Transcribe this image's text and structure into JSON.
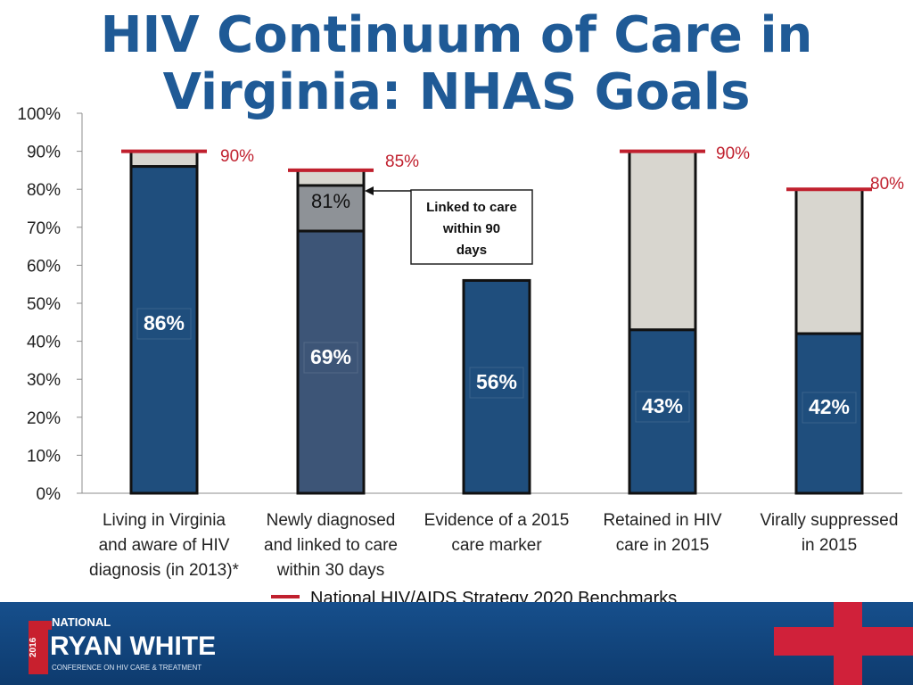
{
  "title_line1": "HIV Continuum of Care in",
  "title_line2": "Virginia: NHAS Goals",
  "chart_data": {
    "type": "bar",
    "ylim": [
      0,
      100
    ],
    "yticks": [
      "0%",
      "10%",
      "20%",
      "30%",
      "40%",
      "50%",
      "60%",
      "70%",
      "80%",
      "90%",
      "100%"
    ],
    "categories": [
      [
        "Living in Virginia",
        "and aware of HIV",
        "diagnosis (in 2013)*"
      ],
      [
        "Newly diagnosed",
        "and linked to care",
        "within 30 days"
      ],
      [
        "Evidence of a 2015",
        "care marker"
      ],
      [
        "Retained in HIV",
        "care in 2015"
      ],
      [
        "Virally suppressed",
        "in 2015"
      ]
    ],
    "values": [
      86,
      69,
      56,
      43,
      42
    ],
    "value_labels": [
      "86%",
      "69%",
      "56%",
      "43%",
      "42%"
    ],
    "extra_segment": {
      "index": 1,
      "value": 81,
      "label": "81%"
    },
    "benchmarks": [
      {
        "index": 0,
        "value": 90,
        "label": "90%"
      },
      {
        "index": 1,
        "value": 85,
        "label": "85%"
      },
      {
        "index": 3,
        "value": 90,
        "label": "90%"
      },
      {
        "index": 4,
        "value": 80,
        "label": "80%"
      }
    ],
    "annotation": [
      "Linked to care",
      "within 90",
      "days"
    ],
    "legend": "National HIV/AIDS Strategy 2020 Benchmarks",
    "colors": {
      "bar_main": "#1f4e7d",
      "bar_secondary": "#3d5577",
      "bar_gray": "#8e9297",
      "bar_gap": "#d8d6cf",
      "benchmark": "#c0202e",
      "title": "#1f5a96"
    }
  },
  "footer": {
    "logo_year": "2016",
    "logo_national": "NATIONAL",
    "logo_main": "RYAN WHITE",
    "logo_sub": "CONFERENCE ON HIV CARE & TREATMENT"
  }
}
